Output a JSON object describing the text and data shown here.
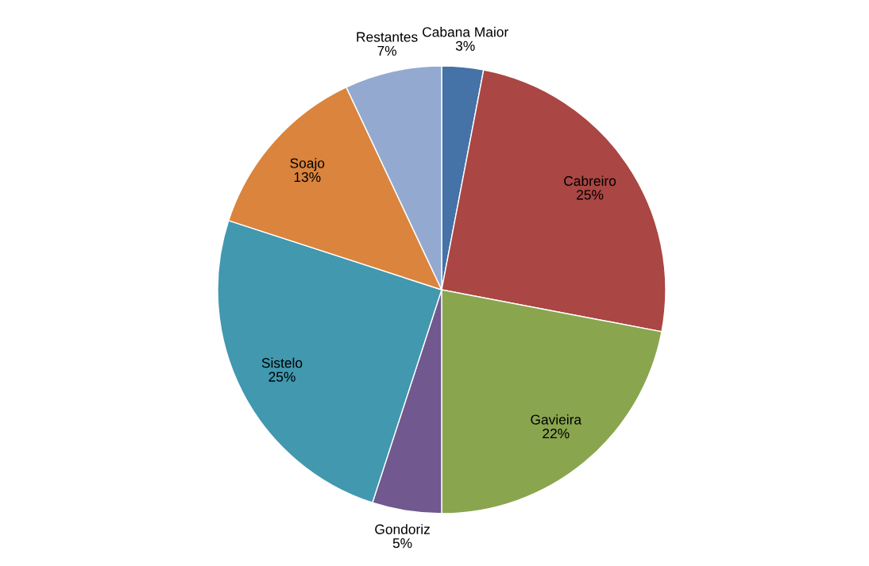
{
  "chart_data": {
    "type": "pie",
    "categories": [
      "Cabana Maior",
      "Cabreiro",
      "Gavieira",
      "Gondoriz",
      "Sistelo",
      "Soajo",
      "Restantes"
    ],
    "values": [
      3,
      25,
      22,
      5,
      25,
      13,
      7
    ],
    "value_labels": [
      "3%",
      "25%",
      "22%",
      "5%",
      "25%",
      "13%",
      "7%"
    ],
    "colors": [
      "#4572a7",
      "#aa4643",
      "#89a54e",
      "#71588f",
      "#4198af",
      "#db843d",
      "#93a9cf"
    ],
    "legend": false
  }
}
